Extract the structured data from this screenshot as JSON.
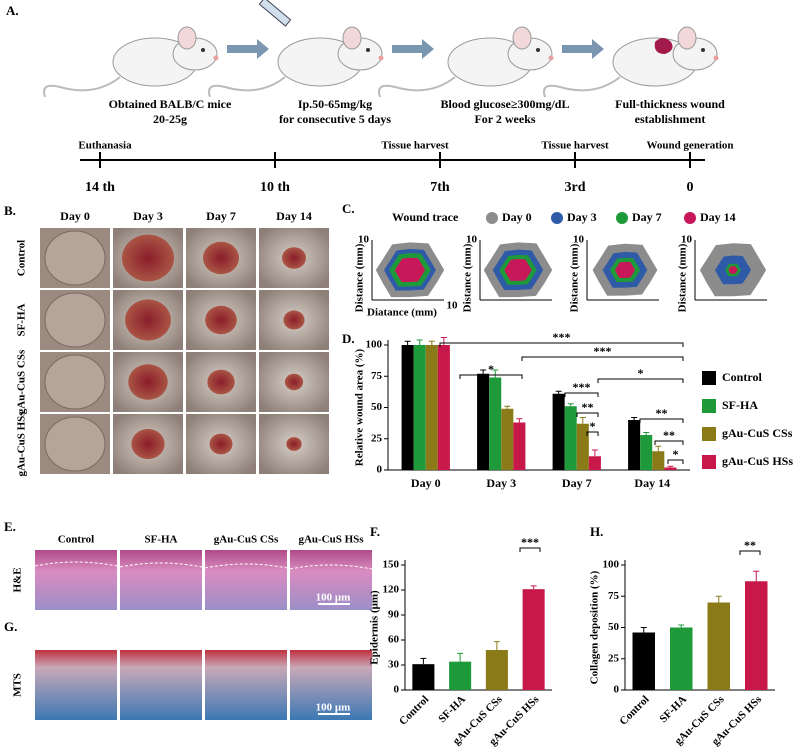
{
  "panel_a": {
    "label": "A.",
    "steps": [
      [
        "Obtained BALB/C mice",
        "20-25g"
      ],
      [
        "Ip.50-65mg/kg",
        "for consecutive 5 days"
      ],
      [
        "Blood glucose≥300mg/dL",
        "For 2 weeks"
      ],
      [
        "Full-thickness wound",
        "establishment"
      ]
    ],
    "events": [
      "Euthanasia",
      "Tissue harvest",
      "Tissue harvest",
      "Wound  generation"
    ],
    "days": [
      "14 th",
      "10 th",
      "7th",
      "3rd",
      "0"
    ]
  },
  "panel_b": {
    "label": "B.",
    "columns": [
      "Day 0",
      "Day 3",
      "Day 7",
      "Day 14"
    ],
    "rows": [
      "Control",
      "SF-HA",
      "gAu-CuS CSs",
      "gAu-CuS HSs"
    ]
  },
  "panel_c": {
    "label": "C.",
    "legend_title": "Wound trace",
    "legend": [
      "Day 0",
      "Day 3",
      "Day 7",
      "Day 14"
    ],
    "colors": [
      "#8c8c8c",
      "#2e5aa8",
      "#1f9a3a",
      "#c8185a"
    ],
    "y_label": "Distance (mm)",
    "x_label": "Diatance (mm)",
    "tick": "10"
  },
  "panel_e": {
    "label": "E.",
    "columns": [
      "Control",
      "SF-HA",
      "gAu-CuS CSs",
      "gAu-CuS HSs"
    ],
    "row": "H&E",
    "scale": "100 μm"
  },
  "panel_g": {
    "label": "G.",
    "row": "MTS",
    "scale": "100 μm"
  },
  "chart_data": [
    {
      "type": "bar",
      "label": "D.",
      "y_label": "Relative wound area (%)",
      "categories": [
        "Day 0",
        "Day 3",
        "Day 7",
        "Day 14"
      ],
      "series": [
        {
          "name": "Control",
          "color": "#000000",
          "values": [
            100,
            77,
            61,
            40
          ],
          "errors": [
            3,
            3,
            2,
            2
          ]
        },
        {
          "name": "SF-HA",
          "color": "#1f9a3a",
          "values": [
            100,
            74,
            51,
            28
          ],
          "errors": [
            4,
            6,
            2,
            2
          ]
        },
        {
          "name": "gAu-CuS CSs",
          "color": "#8b7a18",
          "values": [
            100,
            49,
            37,
            15
          ],
          "errors": [
            3,
            2,
            5,
            4
          ]
        },
        {
          "name": "gAu-CuS HSs",
          "color": "#c8184a",
          "values": [
            100,
            38,
            11,
            2
          ],
          "errors": [
            6,
            3,
            5,
            1
          ]
        }
      ],
      "ylim": [
        0,
        100
      ],
      "yticks": [
        0,
        25,
        50,
        75,
        100
      ],
      "annotations": [
        "***",
        "***",
        "*",
        "*",
        "***",
        "**",
        "*",
        "**",
        "**",
        "*"
      ]
    },
    {
      "type": "bar",
      "label": "F.",
      "y_label": "Epidermis (μm)",
      "categories": [
        "Control",
        "SF-HA",
        "gAu-CuS CSs",
        "gAu-CuS HSs"
      ],
      "values": [
        31,
        34,
        48,
        121
      ],
      "errors": [
        7,
        10,
        10,
        4
      ],
      "colors": [
        "#000000",
        "#1f9a3a",
        "#8b7a18",
        "#c8184a"
      ],
      "ylim": [
        0,
        150
      ],
      "yticks": [
        0,
        30,
        60,
        90,
        120,
        150
      ],
      "annotations": [
        "***"
      ]
    },
    {
      "type": "bar",
      "label": "H.",
      "y_label": "Collagen deposition (%)",
      "categories": [
        "Control",
        "SF-HA",
        "gAu-CuS CSs",
        "gAu-CuS HSs"
      ],
      "values": [
        46,
        50,
        70,
        87
      ],
      "errors": [
        4,
        2,
        5,
        8
      ],
      "colors": [
        "#000000",
        "#1f9a3a",
        "#8b7a18",
        "#c8184a"
      ],
      "ylim": [
        0,
        100
      ],
      "yticks": [
        0,
        25,
        50,
        75,
        100
      ],
      "annotations": [
        "**"
      ]
    }
  ]
}
